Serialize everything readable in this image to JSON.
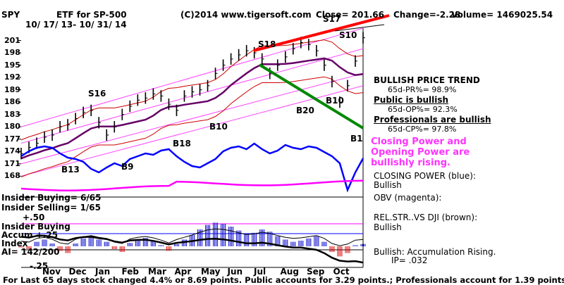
{
  "header": {
    "symbol": "SPY",
    "title": "ETF for SP-500",
    "date_range": "10/ 17/ 13- 10/ 31/ 14",
    "copyright": "(C)2014 www.tigersoft.com",
    "close": "Close= 201.66",
    "change": "Change=-2.28",
    "volume": "Volume= 1469025.54"
  },
  "price_panel": {
    "y_ticks": [
      "201",
      "198",
      "195",
      "192",
      "189",
      "186",
      "183",
      "180",
      "177",
      "174",
      "171",
      "168"
    ],
    "signals": [
      "S17",
      "S10",
      "S18",
      "S16",
      "B20",
      "B10",
      "B10",
      "B18",
      "B13",
      "B9",
      "B1"
    ]
  },
  "annotations": {
    "trend_title": "BULLISH PRICE TREND",
    "pr": "65d-PR%= 98.9%",
    "public_bullish": "Public is bullish",
    "op": "65d-OP%= 92.3%",
    "pros_bullish": "Professionals are bullish",
    "cp": "65d-CP%= 97.8%",
    "pink_lines": [
      "Closing Power and",
      "Opening Power are",
      "bullishly rising."
    ],
    "closing_power": "CLOSING POWER (blue):",
    "closing_power_state": "Bullish",
    "obv": "OBV (magenta):",
    "relstr": "REL.STR..VS DJI (brown):",
    "relstr_state": "Bullish",
    "accum": "Bullish: Accumulation Rising.",
    "ip": "IP=  .032"
  },
  "lower_panel": {
    "insider_buying": "Insider Buying= 6/65",
    "insider_selling": "Insider Selling= 1/65",
    "plus50": "+.50",
    "insider_buying2": "Insider Buying",
    "accum": "Accum +.25",
    "index": "Index",
    "ai": "AI= 142/200",
    "minus25": "-.25",
    "months": [
      "Nov",
      "Dec",
      "Jan",
      "Feb",
      "Mar",
      "Apr",
      "May",
      "Jun",
      "Jul",
      "Aug",
      "Sep",
      "Oct"
    ]
  },
  "footer": "For Last 65 days stock changed  4.4% or  8.69 points.  Public accounts for  3.29 points.;  Professionals account for  1.39 points.",
  "colors": {
    "price": "#000000",
    "channel": "#ff44ff",
    "bands": "#cc0000",
    "ma": "#660066",
    "closing_power": "#0000ff",
    "obv": "#ff00ff",
    "accum_pos": "#0000cc",
    "accum_neg": "#dd0000",
    "trend_red": "#ff0000",
    "trend_green": "#008800"
  },
  "chart_data": {
    "type": "line",
    "title": "ETF for SP-500",
    "x_labels": [
      "Nov",
      "Dec",
      "Jan",
      "Feb",
      "Mar",
      "Apr",
      "May",
      "Jun",
      "Jul",
      "Aug",
      "Sep",
      "Oct"
    ],
    "ylim": [
      166,
      204
    ],
    "y_ticks": [
      201,
      198,
      195,
      192,
      189,
      186,
      183,
      180,
      177,
      174,
      171,
      168
    ],
    "series": [
      {
        "name": "price",
        "values": [
          173.5,
          175,
          176,
          177.5,
          178,
          180,
          180.5,
          182,
          183.5,
          184,
          181,
          178,
          180,
          183,
          185,
          186.5,
          187,
          188,
          187.5,
          185.5,
          184,
          187.5,
          188.5,
          189,
          190,
          193,
          195,
          196.5,
          197.5,
          198.5,
          198,
          196.5,
          193,
          195,
          197,
          199,
          200.5,
          200,
          198.5,
          195,
          191,
          186,
          190,
          196,
          201.66
        ]
      }
    ],
    "signals": [
      {
        "label": "S17",
        "approx_x": "Sep"
      },
      {
        "label": "S10",
        "approx_x": "Oct"
      },
      {
        "label": "S18",
        "approx_x": "Jul"
      },
      {
        "label": "S16",
        "approx_x": "Jan"
      },
      {
        "label": "B20",
        "approx_x": "Aug"
      },
      {
        "label": "B10",
        "approx_x": "Sep"
      },
      {
        "label": "B10",
        "approx_x": "Apr"
      },
      {
        "label": "B18",
        "approx_x": "Mar"
      },
      {
        "label": "B13",
        "approx_x": "Dec"
      },
      {
        "label": "B9",
        "approx_x": "Jan"
      },
      {
        "label": "B1",
        "approx_x": "Oct"
      }
    ],
    "accumulation_index": {
      "ylim": [
        -0.35,
        0.6
      ],
      "values": [
        -0.02,
        -0.05,
        0.08,
        0.12,
        0.05,
        -0.08,
        -0.12,
        0.05,
        0.14,
        0.18,
        0.12,
        0.08,
        -0.05,
        -0.1,
        0.06,
        0.12,
        0.15,
        0.1,
        0.02,
        -0.08,
        0.04,
        0.12,
        0.2,
        0.3,
        0.38,
        0.42,
        0.4,
        0.35,
        0.28,
        0.22,
        0.24,
        0.3,
        0.26,
        0.18,
        0.12,
        0.08,
        0.1,
        0.14,
        0.18,
        0.08,
        -0.1,
        -0.18,
        -0.12,
        0.02,
        0.04
      ]
    }
  }
}
